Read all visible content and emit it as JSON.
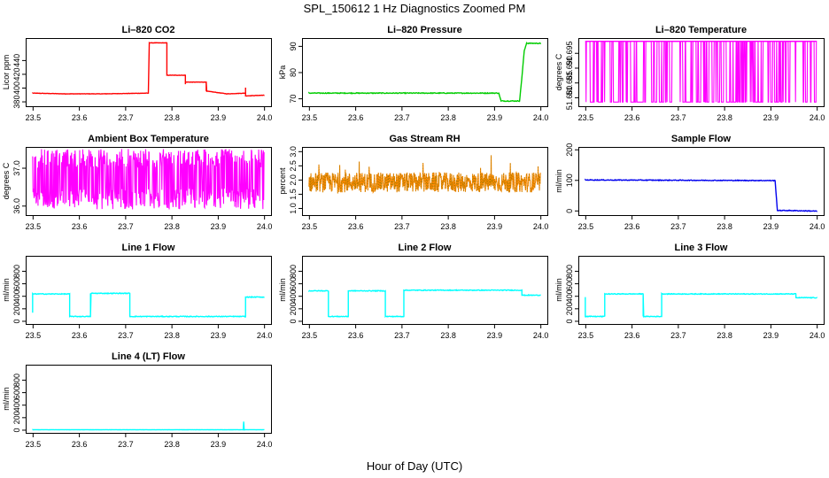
{
  "figure": {
    "title": "SPL_150612  1 Hz Diagnostics Zoomed PM",
    "xlabel": "Hour of Day (UTC)"
  },
  "chart_data": [
    {
      "id": "co2",
      "type": "line",
      "title": "Li–820 CO2",
      "ylabel": "Licor ppm",
      "color": "#ff0000",
      "noise": 0.25,
      "ylim": [
        373,
        472
      ],
      "yticks": [
        "380",
        "400",
        "420",
        "440"
      ],
      "xlim": [
        23.485,
        24.015
      ],
      "xticks": [
        "23.5",
        "23.6",
        "23.7",
        "23.8",
        "23.9",
        "24.0"
      ],
      "x": [
        23.5,
        23.57,
        23.65,
        23.75,
        23.752,
        23.79,
        23.79,
        23.83,
        23.83,
        23.83,
        23.875,
        23.875,
        23.92,
        23.96,
        23.96,
        23.96,
        24.0
      ],
      "values": [
        392,
        391,
        391,
        392,
        465,
        465,
        418,
        418,
        405,
        408,
        408,
        395,
        391,
        392,
        400,
        388,
        389
      ]
    },
    {
      "id": "pressure",
      "type": "line",
      "title": "Li–820 Pressure",
      "ylabel": "kPa",
      "color": "#00cc00",
      "noise": 0.15,
      "ylim": [
        67,
        93
      ],
      "yticks": [
        "70",
        "80",
        "90"
      ],
      "xlim": [
        23.485,
        24.015
      ],
      "xticks": [
        "23.5",
        "23.6",
        "23.7",
        "23.8",
        "23.9",
        "24.0"
      ],
      "x": [
        23.5,
        23.91,
        23.915,
        23.955,
        23.96,
        23.965,
        23.97,
        24.0
      ],
      "values": [
        72,
        72,
        69,
        69,
        78,
        88,
        91,
        91
      ]
    },
    {
      "id": "li820-temp",
      "type": "line",
      "title": "Li–820 Temperature",
      "ylabel": "degrees C",
      "color": "#ff00ff",
      "ylim": [
        51.677,
        51.7
      ],
      "yticks": [
        "51.680",
        "51.685",
        "51.690",
        "51.695"
      ],
      "xlim": [
        23.485,
        24.015
      ],
      "xticks": [
        "23.5",
        "23.6",
        "23.7",
        "23.8",
        "23.9",
        "24.0"
      ],
      "levels": [
        51.6784,
        51.6989
      ],
      "note": "Signal toggles between two quantized levels"
    },
    {
      "id": "box-temp",
      "type": "line",
      "title": "Ambient Box Temperature",
      "ylabel": "degrees C",
      "color": "#ff00ff",
      "ylim": [
        35.75,
        37.55
      ],
      "yticks": [
        "36.0",
        "37.0"
      ],
      "xlim": [
        23.485,
        24.015
      ],
      "xticks": [
        "23.5",
        "23.6",
        "23.7",
        "23.8",
        "23.9",
        "24.0"
      ],
      "levels": [
        35.95,
        37.45
      ],
      "note": "Signal toggles between two quantized levels"
    },
    {
      "id": "rh",
      "type": "line",
      "title": "Gas Stream RH",
      "ylabel": "percent",
      "color": "#ff8800",
      "stroke2": "#8a7a00",
      "ylim": [
        0.75,
        3.15
      ],
      "yticks": [
        "1.0",
        "1.5",
        "2.0",
        "2.5",
        "3.0"
      ],
      "xlim": [
        23.485,
        24.015
      ],
      "xticks": [
        "23.5",
        "23.6",
        "23.7",
        "23.8",
        "23.9",
        "24.0"
      ],
      "mean": 1.9,
      "spread": 0.35,
      "note": "Noisy series centred near 1.9 %"
    },
    {
      "id": "sample-flow",
      "type": "line",
      "title": "Sample Flow",
      "ylabel": "ml/min",
      "color": "#0000ee",
      "noise": 1.2,
      "ylim": [
        -15,
        208
      ],
      "yticks": [
        "0",
        "100",
        "200"
      ],
      "xlim": [
        23.485,
        24.015
      ],
      "xticks": [
        "23.5",
        "23.6",
        "23.7",
        "23.8",
        "23.9",
        "24.0"
      ],
      "x": [
        23.5,
        23.91,
        23.915,
        23.94,
        24.0
      ],
      "values": [
        100,
        98,
        0,
        0,
        -2
      ]
    },
    {
      "id": "line1",
      "type": "line",
      "title": "Line 1 Flow",
      "ylabel": "ml/min",
      "color": "#00ffff",
      "noise": 6,
      "ylim": [
        -50,
        1040
      ],
      "yticks": [
        "0",
        "200",
        "400",
        "600",
        "800"
      ],
      "xlim": [
        23.485,
        24.015
      ],
      "xticks": [
        "23.5",
        "23.6",
        "23.7",
        "23.8",
        "23.9",
        "24.0"
      ],
      "x": [
        23.5,
        23.5,
        23.502,
        23.58,
        23.58,
        23.625,
        23.625,
        23.71,
        23.71,
        23.96,
        23.96,
        24.0
      ],
      "values": [
        130,
        430,
        430,
        430,
        70,
        70,
        440,
        440,
        70,
        70,
        380,
        380
      ]
    },
    {
      "id": "line2",
      "type": "line",
      "title": "Line 2 Flow",
      "ylabel": "ml/min",
      "color": "#00ffff",
      "noise": 6,
      "ylim": [
        -50,
        1040
      ],
      "yticks": [
        "0",
        "200",
        "400",
        "600",
        "800"
      ],
      "xlim": [
        23.485,
        24.015
      ],
      "xticks": [
        "23.5",
        "23.6",
        "23.7",
        "23.8",
        "23.9",
        "24.0"
      ],
      "x": [
        23.5,
        23.542,
        23.542,
        23.585,
        23.585,
        23.665,
        23.665,
        23.705,
        23.705,
        23.96,
        23.96,
        24.0
      ],
      "values": [
        480,
        480,
        70,
        70,
        480,
        480,
        70,
        70,
        490,
        490,
        410,
        410
      ]
    },
    {
      "id": "line3",
      "type": "line",
      "title": "Line 3 Flow",
      "ylabel": "ml/min",
      "color": "#00ffff",
      "noise": 6,
      "ylim": [
        -50,
        1040
      ],
      "yticks": [
        "0",
        "200",
        "400",
        "600",
        "800"
      ],
      "xlim": [
        23.485,
        24.015
      ],
      "xticks": [
        "23.5",
        "23.6",
        "23.7",
        "23.8",
        "23.9",
        "24.0"
      ],
      "x": [
        23.5,
        23.5,
        23.502,
        23.542,
        23.542,
        23.625,
        23.625,
        23.665,
        23.665,
        23.955,
        23.955,
        24.0
      ],
      "values": [
        380,
        70,
        70,
        70,
        430,
        430,
        70,
        70,
        430,
        430,
        370,
        370
      ]
    },
    {
      "id": "line4",
      "type": "line",
      "title": "Line 4 (LT) Flow",
      "ylabel": "ml/min",
      "color": "#00ffff",
      "noise": 1,
      "ylim": [
        -50,
        1040
      ],
      "yticks": [
        "0",
        "200",
        "400",
        "600",
        "800"
      ],
      "xlim": [
        23.485,
        24.015
      ],
      "xticks": [
        "23.5",
        "23.6",
        "23.7",
        "23.8",
        "23.9",
        "24.0"
      ],
      "x": [
        23.5,
        23.955,
        23.956,
        23.957,
        23.958,
        24.0
      ],
      "values": [
        0,
        0,
        130,
        0,
        0,
        0
      ]
    }
  ]
}
